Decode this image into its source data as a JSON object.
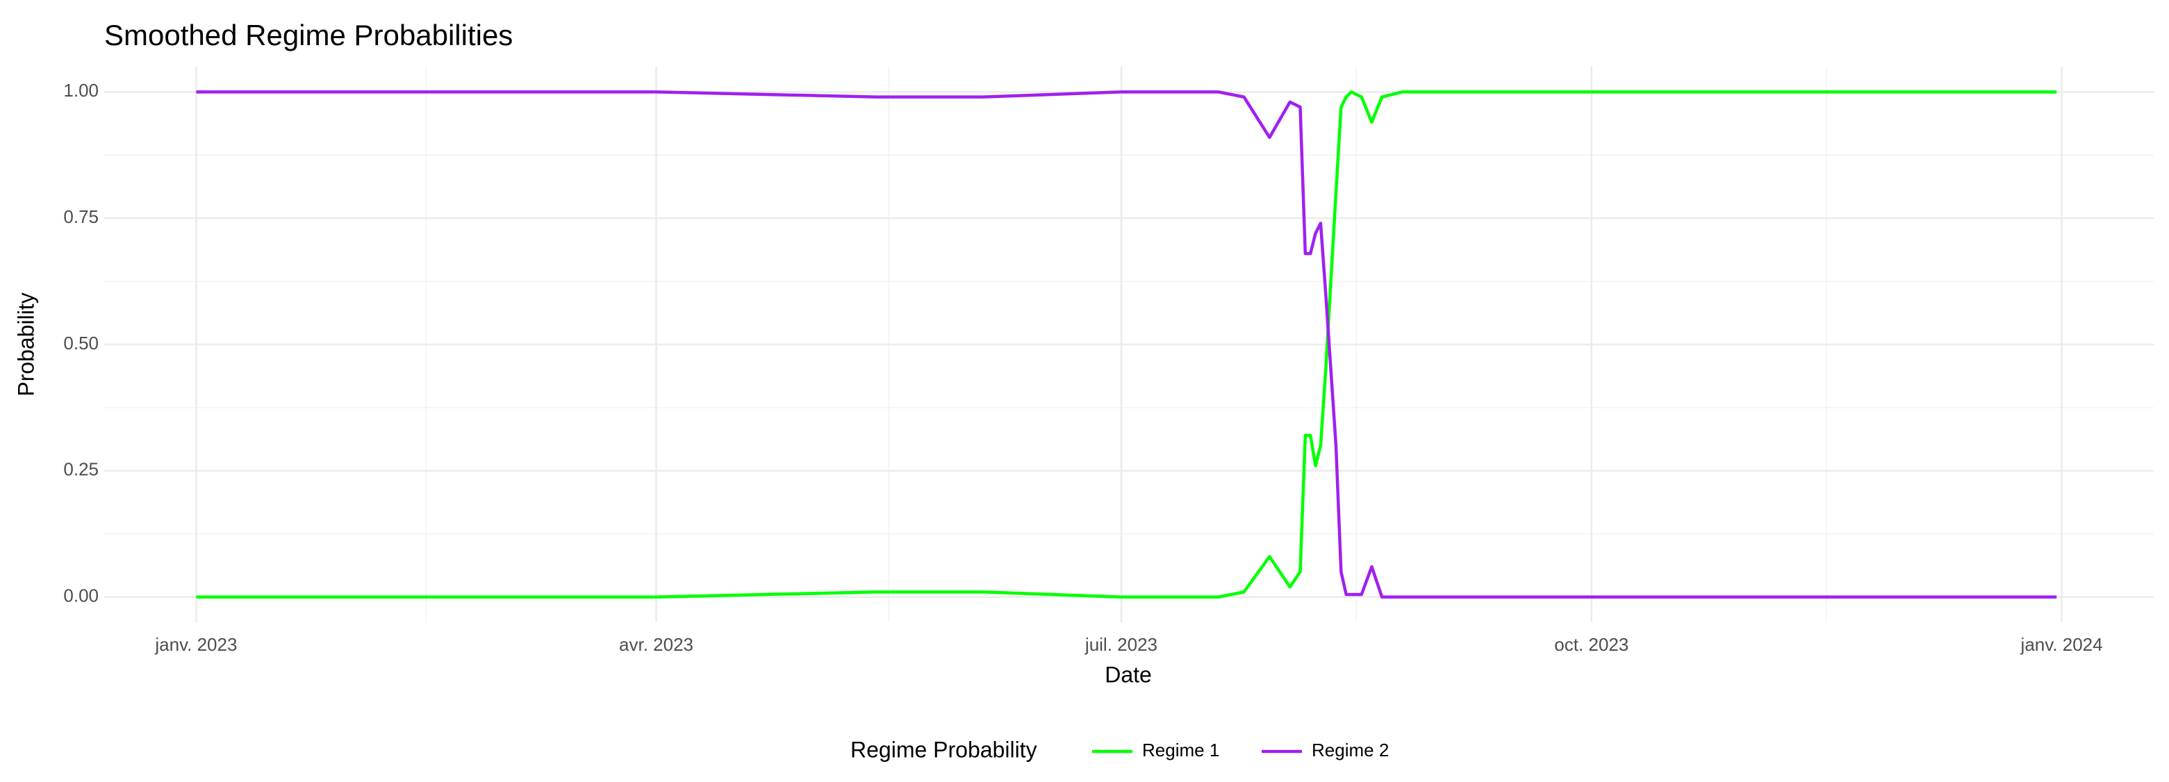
{
  "chart_data": {
    "type": "line",
    "title": "Smoothed Regime Probabilities",
    "x_label": "Date",
    "y_label": "Probability",
    "legend_title": "Regime Probability",
    "legend_position": "bottom",
    "grid": true,
    "x": [
      "2023-01-01",
      "2023-02-15",
      "2023-04-01",
      "2023-05-14",
      "2023-06-04",
      "2023-07-01",
      "2023-07-20",
      "2023-07-25",
      "2023-07-30",
      "2023-08-03",
      "2023-08-05",
      "2023-08-06",
      "2023-08-07",
      "2023-08-08",
      "2023-08-09",
      "2023-08-10",
      "2023-08-12",
      "2023-08-13",
      "2023-08-14",
      "2023-08-15",
      "2023-08-17",
      "2023-08-19",
      "2023-08-21",
      "2023-08-25",
      "2023-12-31"
    ],
    "series": [
      {
        "name": "Regime 1",
        "color": "#00ff00",
        "values": [
          0,
          0,
          0,
          0.01,
          0.01,
          0,
          0,
          0.01,
          0.08,
          0.02,
          0.05,
          0.32,
          0.32,
          0.26,
          0.3,
          0.45,
          0.8,
          0.97,
          0.99,
          1,
          0.99,
          0.94,
          0.99,
          1,
          1
        ]
      },
      {
        "name": "Regime 2",
        "color": "#a020f0",
        "values": [
          1,
          1,
          1,
          0.99,
          0.99,
          1,
          1,
          0.99,
          0.91,
          0.98,
          0.97,
          0.68,
          0.68,
          0.72,
          0.74,
          0.6,
          0.3,
          0.05,
          0.005,
          0.005,
          0.005,
          0.06,
          0,
          0,
          0
        ]
      }
    ],
    "xlim": [
      "2022-12-14",
      "2024-01-19"
    ],
    "xticks": [
      {
        "value": "2023-01",
        "label": "janv. 2023"
      },
      {
        "value": "2023-04",
        "label": "avr. 2023"
      },
      {
        "value": "2023-07",
        "label": "juil. 2023"
      },
      {
        "value": "2023-10",
        "label": "oct. 2023"
      },
      {
        "value": "2024-01",
        "label": "janv. 2024"
      }
    ],
    "ylim": [
      -0.05,
      1.05
    ],
    "yticks": [
      {
        "value": 0,
        "label": "0.00"
      },
      {
        "value": 0.25,
        "label": "0.25"
      },
      {
        "value": 0.5,
        "label": "0.50"
      },
      {
        "value": 0.75,
        "label": "0.75"
      },
      {
        "value": 1,
        "label": "1.00"
      }
    ]
  }
}
